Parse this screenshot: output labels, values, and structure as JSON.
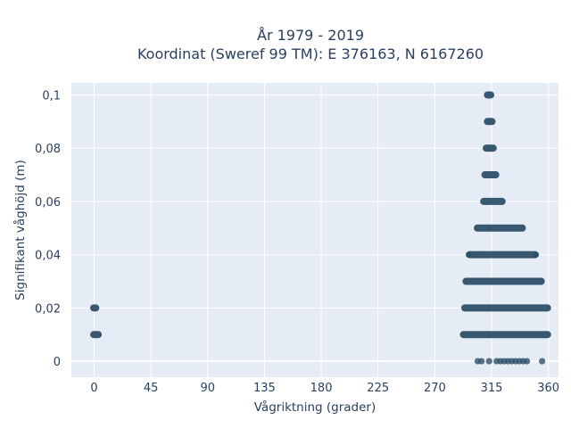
{
  "chart_data": {
    "type": "scatter",
    "title_line1": "År 1979 - 2019",
    "title_line2": "Koordinat (Sweref 99 TM): E 376163, N 6167260",
    "xlabel": "Vågriktning (grader)",
    "ylabel": "Signifikant våghöjd (m)",
    "xlim": [
      -18,
      368
    ],
    "ylim": [
      -0.006,
      0.1045
    ],
    "x_ticks": [
      0,
      45,
      90,
      135,
      180,
      225,
      270,
      315,
      360
    ],
    "x_tick_labels": [
      "0",
      "45",
      "90",
      "135",
      "180",
      "225",
      "270",
      "315",
      "360"
    ],
    "y_ticks": [
      0,
      0.02,
      0.04,
      0.06,
      0.08,
      0.1
    ],
    "y_tick_labels": [
      "0",
      "0,02",
      "0,04",
      "0,06",
      "0,08",
      "0,1"
    ],
    "grid": true,
    "marker_color": "#2e5068",
    "plot_bg": "#e5ecf6",
    "series": [
      {
        "bands": [
          {
            "y": 0.1,
            "x_min": 311,
            "x_max": 315
          },
          {
            "y": 0.09,
            "x_min": 311,
            "x_max": 316
          },
          {
            "y": 0.08,
            "x_min": 310,
            "x_max": 317
          },
          {
            "y": 0.07,
            "x_min": 309,
            "x_max": 319
          },
          {
            "y": 0.06,
            "x_min": 308,
            "x_max": 324
          },
          {
            "y": 0.05,
            "x_min": 303,
            "x_max": 340
          },
          {
            "y": 0.04,
            "x_min": 297,
            "x_max": 350
          },
          {
            "y": 0.03,
            "x_min": 294,
            "x_max": 355
          },
          {
            "y": 0.02,
            "x_min": 293,
            "x_max": 360
          },
          {
            "y": 0.01,
            "x_min": 292,
            "x_max": 360
          },
          {
            "y": 0.02,
            "x_min": -1,
            "x_max": 2
          },
          {
            "y": 0.01,
            "x_min": -1,
            "x_max": 4
          }
        ],
        "sparse_points": [
          {
            "x": 297,
            "y": 0.04
          },
          {
            "x": 350,
            "y": 0.04
          },
          {
            "x": 304,
            "y": 0.0
          },
          {
            "x": 307,
            "y": 0.0
          },
          {
            "x": 313,
            "y": 0.0
          },
          {
            "x": 319,
            "y": 0.0
          },
          {
            "x": 322,
            "y": 0.0
          },
          {
            "x": 325,
            "y": 0.0
          },
          {
            "x": 328,
            "y": 0.0
          },
          {
            "x": 331,
            "y": 0.0
          },
          {
            "x": 334,
            "y": 0.0
          },
          {
            "x": 337,
            "y": 0.0
          },
          {
            "x": 340,
            "y": 0.0
          },
          {
            "x": 343,
            "y": 0.0
          },
          {
            "x": 355,
            "y": 0.0
          }
        ]
      }
    ]
  }
}
